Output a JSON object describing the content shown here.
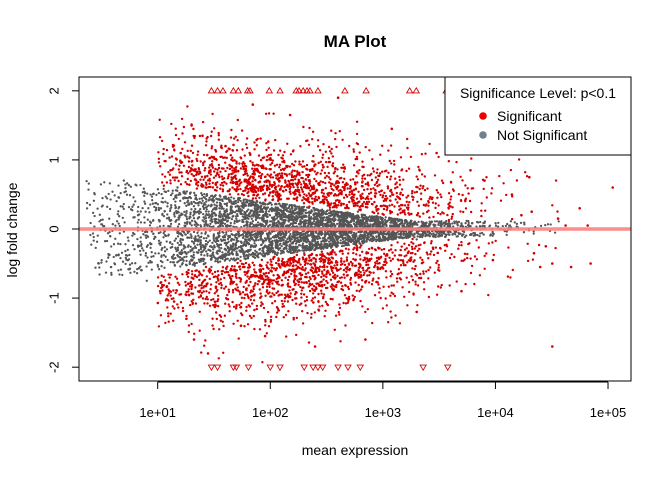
{
  "chart_data": {
    "type": "scatter",
    "title": "MA Plot",
    "xlabel": "mean expression",
    "ylabel": "log fold change",
    "x_scale": "log10",
    "xlim": [
      2.0,
      160000
    ],
    "ylim": [
      -2.2,
      2.2
    ],
    "x_ticks": [
      10,
      100,
      1000,
      10000,
      100000
    ],
    "x_tick_labels": [
      "1e+01",
      "1e+02",
      "1e+03",
      "1e+04",
      "1e+05"
    ],
    "y_ticks": [
      -2,
      -1,
      0,
      1,
      2
    ],
    "y_tick_labels": [
      "-2",
      "-1",
      "0",
      "1",
      "2"
    ],
    "grid": false,
    "reference_line": {
      "y": 0,
      "color": "#ff8080"
    },
    "legend": {
      "title": "Significance Level: p<0.1",
      "position": "top-right",
      "entries": [
        {
          "label": "Significant",
          "color": "#ee0000"
        },
        {
          "label": "Not Significant",
          "color": "#708090"
        }
      ]
    },
    "series": [
      {
        "name": "Significant",
        "color": "#d40000",
        "description_of_shape": "points with |log fold change| above an expression-dependent threshold; density peaks around mean expression 1e+02 to 3e+03",
        "clipped_up_x": [
          30,
          34,
          38,
          47,
          52,
          63,
          66,
          98,
          122,
          170,
          180,
          196,
          212,
          225,
          265,
          460,
          710,
          1730,
          1980,
          3650
        ],
        "clipped_down_x": [
          30,
          34,
          47,
          50,
          64,
          100,
          122,
          200,
          240,
          265,
          292,
          400,
          490,
          630,
          2280,
          3770
        ],
        "sampled_points": [
          [
            10.5,
            -0.9
          ],
          [
            13,
            0.85
          ],
          [
            14,
            -1.05
          ],
          [
            16,
            1.1
          ],
          [
            18,
            -1.3
          ],
          [
            20,
            1.5
          ],
          [
            21,
            -1.6
          ],
          [
            25,
            1.35
          ],
          [
            28,
            -1.8
          ],
          [
            40,
            1.2
          ],
          [
            55,
            -1.4
          ],
          [
            70,
            1.8
          ],
          [
            90,
            -1.55
          ],
          [
            150,
            1.65
          ],
          [
            250,
            -1.7
          ],
          [
            400,
            1.9
          ],
          [
            700,
            -1.6
          ],
          [
            1200,
            1.45
          ],
          [
            2000,
            -1.2
          ],
          [
            3000,
            1.1
          ],
          [
            5000,
            -0.9
          ],
          [
            6000,
            0.85
          ],
          [
            8000,
            0.7
          ],
          [
            9500,
            -0.45
          ],
          [
            14000,
            0.5
          ],
          [
            17000,
            0.2
          ],
          [
            20000,
            0.75
          ],
          [
            21000,
            0.25
          ],
          [
            22000,
            -0.35
          ],
          [
            25000,
            -0.55
          ],
          [
            28000,
            -0.25
          ],
          [
            32000,
            -0.5
          ],
          [
            36000,
            0.15
          ],
          [
            42000,
            0.05
          ],
          [
            47000,
            -0.55
          ],
          [
            56000,
            0.3
          ],
          [
            66000,
            0.05
          ],
          [
            70000,
            -0.5
          ],
          [
            110000,
            0.6
          ],
          [
            32000,
            -1.7
          ]
        ]
      },
      {
        "name": "Not Significant",
        "color": "#555555",
        "description_of_shape": "dense funnel centred on 0; spread about ±0.75 at mean expression 3, narrowing to ±0.15 near 5e+03",
        "sampled_points": [
          [
            2.5,
            0.35
          ],
          [
            3,
            -0.5
          ],
          [
            5,
            0.7
          ],
          [
            8,
            -0.75
          ],
          [
            15,
            0.6
          ],
          [
            30,
            -0.55
          ],
          [
            80,
            0.45
          ],
          [
            200,
            -0.35
          ],
          [
            600,
            0.25
          ],
          [
            2000,
            -0.15
          ],
          [
            5000,
            0.08
          ]
        ]
      }
    ]
  }
}
